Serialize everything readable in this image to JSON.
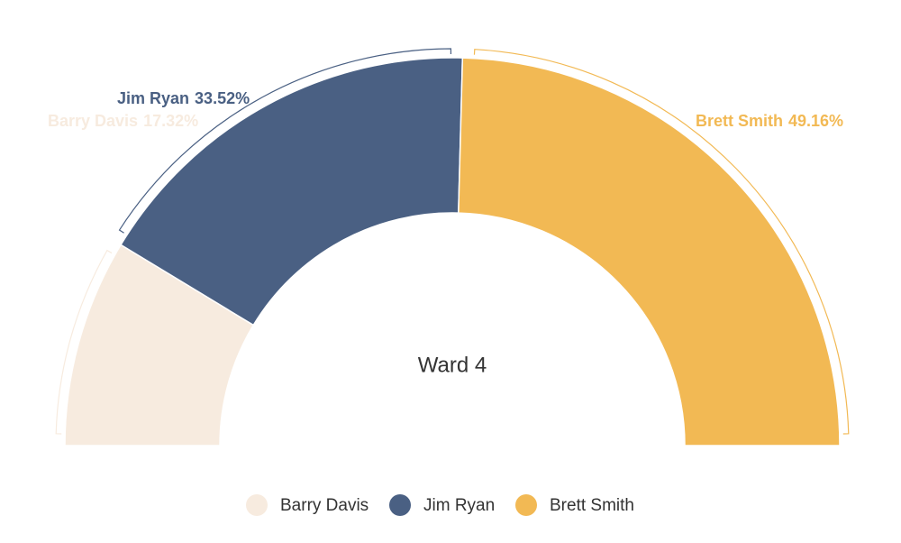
{
  "chart_data": {
    "type": "pie",
    "title": "Ward 4",
    "categories": [
      "Barry Davis",
      "Jim Ryan",
      "Brett Smith"
    ],
    "values": [
      17.32,
      33.52,
      49.16
    ],
    "value_labels": [
      "17.32%",
      "33.52%",
      "49.16%"
    ],
    "colors": [
      "#f7ebdf",
      "#4a6083",
      "#f2b954"
    ]
  }
}
